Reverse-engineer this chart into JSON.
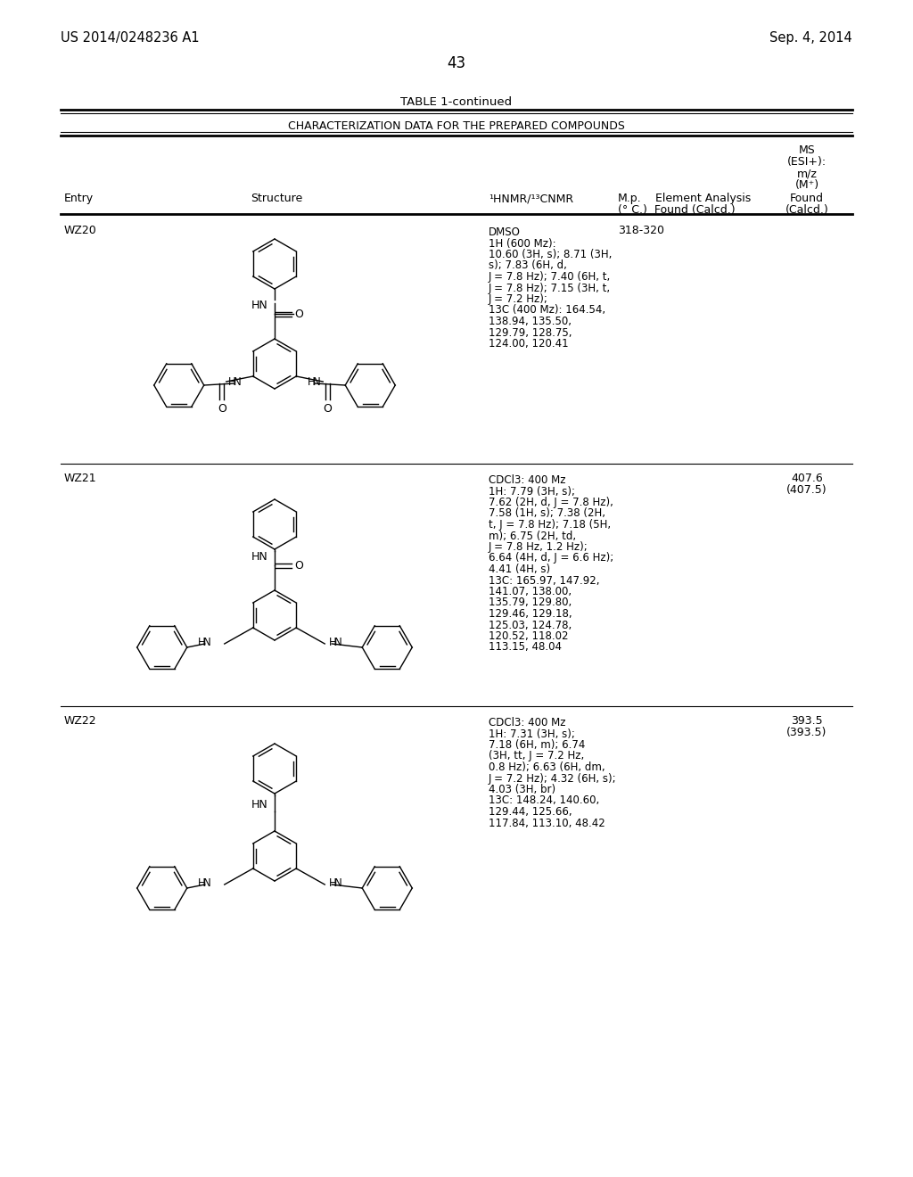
{
  "page_number": "43",
  "patent_number": "US 2014/0248236 A1",
  "patent_date": "Sep. 4, 2014",
  "table_title": "TABLE 1-continued",
  "table_subtitle": "CHARACTERIZATION DATA FOR THE PREPARED COMPOUNDS",
  "entries": [
    {
      "id": "WZ20",
      "nmr_lines": [
        "DMSO",
        "1H (600 Mz):",
        "10.60 (3H, s); 8.71 (3H,",
        "s); 7.83 (6H, d,",
        "J = 7.8 Hz); 7.40 (6H, t,",
        "J = 7.8 Hz); 7.15 (3H, t,",
        "J = 7.2 Hz);",
        "13C (400 Mz): 164.54,",
        "138.94, 135.50,",
        "129.79, 128.75,",
        "124.00, 120.41"
      ],
      "mp": "318-320",
      "ms": ""
    },
    {
      "id": "WZ21",
      "nmr_lines": [
        "CDCl3: 400 Mz",
        "1H: 7.79 (3H, s);",
        "7.62 (2H, d, J = 7.8 Hz),",
        "7.58 (1H, s); 7.38 (2H,",
        "t, J = 7.8 Hz); 7.18 (5H,",
        "m); 6.75 (2H, td,",
        "J = 7.8 Hz, 1.2 Hz);",
        "6.64 (4H, d, J = 6.6 Hz);",
        "4.41 (4H, s)",
        "13C: 165.97, 147.92,",
        "141.07, 138.00,",
        "135.79, 129.80,",
        "129.46, 129.18,",
        "125.03, 124.78,",
        "120.52, 118.02",
        "113.15, 48.04"
      ],
      "mp": "",
      "ms": "407.6\n(407.5)"
    },
    {
      "id": "WZ22",
      "nmr_lines": [
        "CDCl3: 400 Mz",
        "1H: 7.31 (3H, s);",
        "7.18 (6H, m); 6.74",
        "(3H, tt, J = 7.2 Hz,",
        "0.8 Hz); 6.63 (6H, dm,",
        "J = 7.2 Hz); 4.32 (6H, s);",
        "4.03 (3H, br)",
        "13C: 148.24, 140.60,",
        "129.44, 125.66,",
        "117.84, 113.10, 48.42"
      ],
      "mp": "",
      "ms": "393.5\n(393.5)"
    }
  ],
  "bg": "#ffffff",
  "fg": "#000000"
}
